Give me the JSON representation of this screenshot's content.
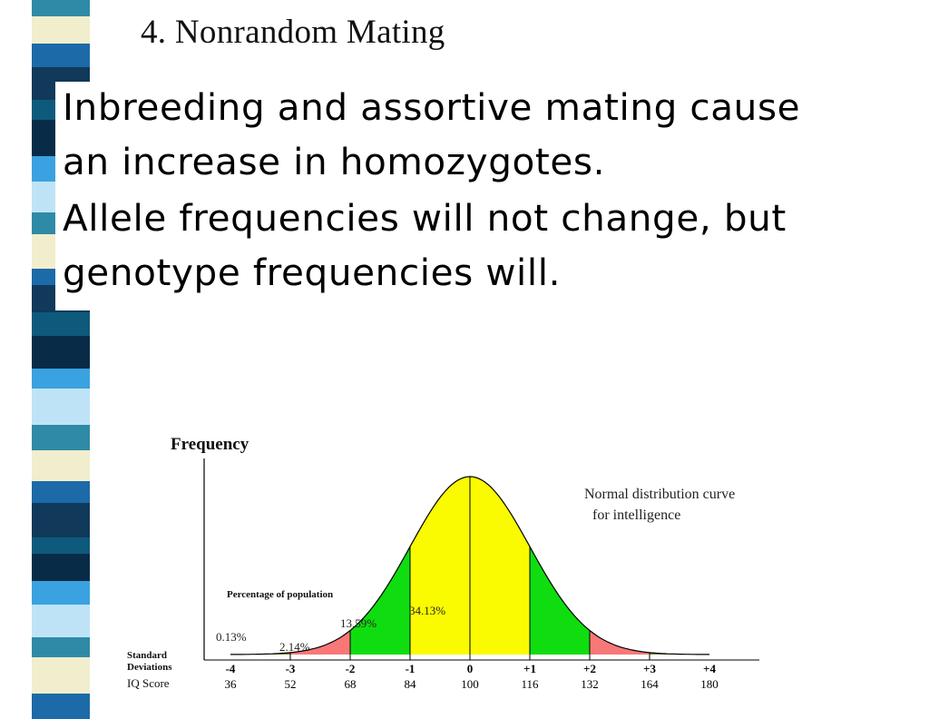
{
  "slide": {
    "title": "4. Nonrandom Mating",
    "body_lines": [
      "Inbreeding and assortive mating cause",
      "an increase in homozygotes.",
      "Allele frequencies will not change, but",
      "genotype frequencies will."
    ]
  },
  "figure": {
    "y_axis_label": "Frequency",
    "caption_line1": "Normal distribution curve",
    "caption_line2": "for intelligence",
    "percent_header": "Percentage of population",
    "row_label_sd_1": "Standard",
    "row_label_sd_2": "Deviations",
    "row_label_iq": "IQ Score",
    "percent_labels": {
      "outer": "0.13%",
      "tail": "2.14%",
      "mid": "13.59%",
      "center": "34.13%"
    },
    "sd_ticks": [
      "-4",
      "-3",
      "-2",
      "-1",
      "0",
      "+1",
      "+2",
      "+3",
      "+4"
    ],
    "iq_scores": [
      "36",
      "52",
      "68",
      "84",
      "100",
      "116",
      "132",
      "164",
      "180"
    ],
    "region_colors": {
      "outer": "#808018",
      "tail": "#f87878",
      "mid": "#10dd10",
      "center": "#fafa00"
    }
  },
  "chart_data": {
    "type": "area",
    "title": "Normal distribution curve for intelligence",
    "ylabel": "Frequency",
    "x_rows": [
      "Standard Deviations",
      "IQ Score"
    ],
    "sd_ticks": [
      "-4",
      "-3",
      "-2",
      "-1",
      "0",
      "+1",
      "+2",
      "+3",
      "+4"
    ],
    "iq_scores": [
      36,
      52,
      68,
      84,
      100,
      116,
      132,
      164,
      180
    ],
    "regions": [
      {
        "from": -3,
        "to": -2,
        "percent": 2.14
      },
      {
        "from": -2,
        "to": -1,
        "percent": 13.59
      },
      {
        "from": -1,
        "to": 0,
        "percent": 34.13
      },
      {
        "from": 0,
        "to": 1,
        "percent": 34.13
      },
      {
        "from": 1,
        "to": 2,
        "percent": 13.59
      },
      {
        "from": 2,
        "to": 3,
        "percent": 2.14
      },
      {
        "from": -4,
        "to": -3,
        "percent": 0.13
      },
      {
        "from": 3,
        "to": 4,
        "percent": 0.13
      }
    ]
  }
}
